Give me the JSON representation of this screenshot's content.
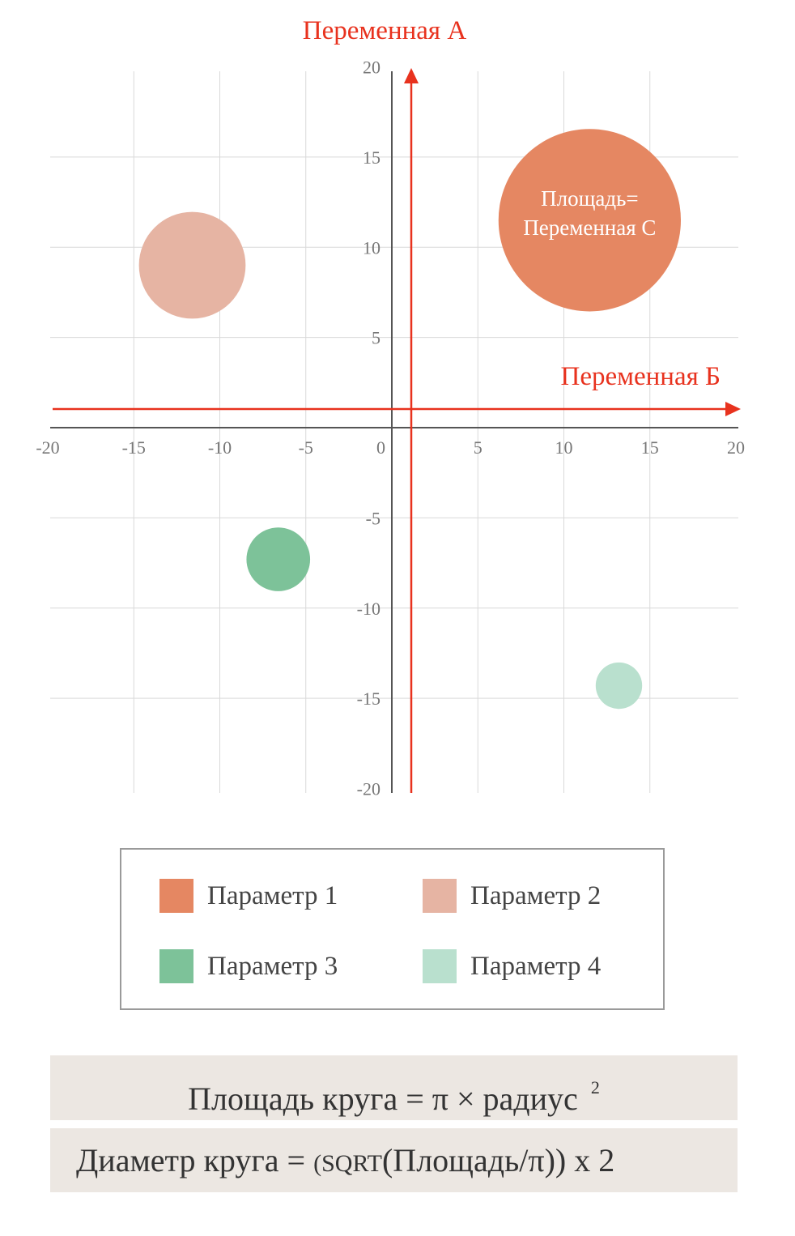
{
  "chart_data": {
    "type": "bubble",
    "xlim": [
      -20,
      20
    ],
    "ylim": [
      -20,
      20
    ],
    "x_ticks": [
      -20,
      -15,
      -10,
      -5,
      0,
      5,
      10,
      15,
      20
    ],
    "y_ticks": [
      -20,
      -15,
      -10,
      -5,
      5,
      10,
      15,
      20
    ],
    "grid": true,
    "x_axis_title": "Переменная Б",
    "y_axis_title": "Переменная А",
    "axis_title_color": "#e8321e",
    "series": [
      {
        "name": "Параметр 1",
        "x": 11.5,
        "y": 11.5,
        "size": 5.3,
        "color": "#e58762",
        "label": "Площадь=\nПеременная С"
      },
      {
        "name": "Параметр 2",
        "x": -11.6,
        "y": 9.0,
        "size": 3.1,
        "color": "#e6b4a3",
        "label": ""
      },
      {
        "name": "Параметр 3",
        "x": -6.6,
        "y": -7.3,
        "size": 1.85,
        "color": "#7dc299",
        "label": ""
      },
      {
        "name": "Параметр 4",
        "x": 13.2,
        "y": -14.3,
        "size": 1.35,
        "color": "#b9e0ce",
        "label": ""
      }
    ]
  },
  "formulas": {
    "area": {
      "text": "Площадь круга = π × радиус",
      "sup": "2"
    },
    "diameter": {
      "text_a": "Диаметр круга = ",
      "text_b": "(SQRT",
      "text_c": "(Площадь/π)) x 2"
    }
  }
}
